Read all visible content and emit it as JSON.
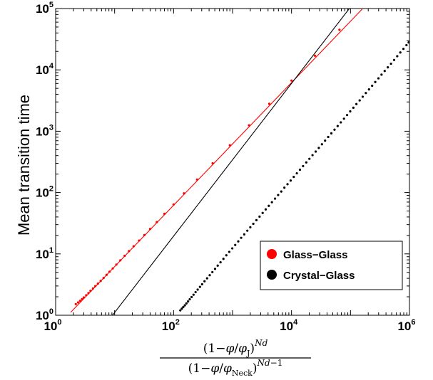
{
  "chart_data": {
    "type": "scatter",
    "x_scale": "log",
    "y_scale": "log",
    "xlim": [
      1,
      1000000
    ],
    "ylim": [
      1,
      100000
    ],
    "x_ticks": [
      {
        "base": "10",
        "exp": "0"
      },
      {
        "base": "10",
        "exp": "2"
      },
      {
        "base": "10",
        "exp": "4"
      },
      {
        "base": "10",
        "exp": "6"
      }
    ],
    "y_ticks": [
      {
        "base": "10",
        "exp": "0"
      },
      {
        "base": "10",
        "exp": "1"
      },
      {
        "base": "10",
        "exp": "2"
      },
      {
        "base": "10",
        "exp": "3"
      },
      {
        "base": "10",
        "exp": "4"
      },
      {
        "base": "10",
        "exp": "5"
      }
    ],
    "ylabel": "Mean transition time",
    "xlabel": "(1−φ/φJ)^Nd / (1−φ/φNeck)^(Nd−1)",
    "legend_position": "bottom-right",
    "series": [
      {
        "name": "Glass−Glass",
        "color": "#ff0000",
        "marker": "dot",
        "points": [
          [
            2.2,
            1.52
          ],
          [
            2.4,
            1.62
          ],
          [
            2.6,
            1.72
          ],
          [
            2.8,
            1.83
          ],
          [
            3.0,
            1.95
          ],
          [
            3.3,
            2.12
          ],
          [
            3.6,
            2.3
          ],
          [
            3.9,
            2.5
          ],
          [
            4.3,
            2.73
          ],
          [
            4.7,
            2.98
          ],
          [
            5.2,
            3.27
          ],
          [
            5.8,
            3.63
          ],
          [
            6.5,
            4.05
          ],
          [
            7.3,
            4.55
          ],
          [
            8.2,
            5.12
          ],
          [
            9.3,
            5.8
          ],
          [
            10.7,
            6.7
          ],
          [
            12.5,
            7.85
          ],
          [
            14.8,
            9.3
          ],
          [
            17.5,
            11.1
          ],
          [
            21,
            13.3
          ],
          [
            26,
            16.5
          ],
          [
            32,
            20.3
          ],
          [
            40,
            25.5
          ],
          [
            52,
            33
          ],
          [
            70,
            45
          ],
          [
            100,
            64
          ],
          [
            150,
            97
          ],
          [
            250,
            163
          ],
          [
            460,
            300
          ],
          [
            900,
            590
          ],
          [
            1900,
            1250
          ],
          [
            4200,
            2800
          ],
          [
            10000,
            6700
          ],
          [
            25000,
            17000
          ],
          [
            65000,
            45000
          ]
        ],
        "fit": {
          "x0": 1.8,
          "x1": 220000,
          "slope": 1.0,
          "coef": 0.62
        }
      },
      {
        "name": "Crystal−Glass",
        "color": "#000000",
        "marker": "dot",
        "points": [
          [
            130,
            1.2
          ],
          [
            138,
            1.28
          ],
          [
            146,
            1.36
          ],
          [
            155,
            1.45
          ],
          [
            165,
            1.56
          ],
          [
            176,
            1.68
          ],
          [
            188,
            1.82
          ],
          [
            202,
            1.98
          ],
          [
            218,
            2.16
          ],
          [
            236,
            2.38
          ],
          [
            256,
            2.62
          ],
          [
            280,
            2.9
          ],
          [
            305,
            3.2
          ],
          [
            335,
            3.58
          ],
          [
            370,
            4.0
          ],
          [
            410,
            4.5
          ],
          [
            455,
            5.05
          ],
          [
            505,
            5.7
          ],
          [
            560,
            6.45
          ],
          [
            625,
            7.3
          ],
          [
            700,
            8.3
          ],
          [
            785,
            9.5
          ],
          [
            880,
            10.8
          ],
          [
            990,
            12.3
          ],
          [
            1110,
            14.0
          ],
          [
            1250,
            16.0
          ],
          [
            1400,
            18.3
          ],
          [
            1580,
            20.8
          ],
          [
            1780,
            23.9
          ],
          [
            2000,
            27.2
          ],
          [
            2250,
            31.0
          ],
          [
            2540,
            35.5
          ],
          [
            2870,
            40.6
          ],
          [
            3240,
            46.5
          ],
          [
            3650,
            53.2
          ],
          [
            4120,
            60.8
          ],
          [
            4650,
            69.6
          ],
          [
            5250,
            79.7
          ],
          [
            5930,
            91.2
          ],
          [
            6700,
            104
          ],
          [
            7570,
            120
          ],
          [
            8550,
            137
          ],
          [
            9660,
            157
          ],
          [
            10900,
            180
          ],
          [
            12300,
            206
          ],
          [
            13900,
            236
          ],
          [
            15700,
            270
          ],
          [
            17800,
            310
          ],
          [
            20100,
            355
          ],
          [
            22700,
            407
          ],
          [
            25700,
            466
          ],
          [
            29000,
            534
          ],
          [
            32800,
            612
          ],
          [
            37100,
            702
          ],
          [
            41900,
            805
          ],
          [
            47400,
            923
          ],
          [
            53600,
            1060
          ],
          [
            60600,
            1215
          ],
          [
            68500,
            1395
          ],
          [
            77500,
            1600
          ],
          [
            87600,
            1835
          ],
          [
            99000,
            2105
          ],
          [
            112000,
            2415
          ],
          [
            126000,
            2770
          ],
          [
            143000,
            3180
          ],
          [
            161000,
            3650
          ],
          [
            182000,
            4190
          ],
          [
            206000,
            4810
          ],
          [
            233000,
            5520
          ],
          [
            263000,
            6340
          ],
          [
            298000,
            7280
          ],
          [
            336000,
            8360
          ],
          [
            380000,
            9600
          ],
          [
            430000,
            11000
          ],
          [
            486000,
            12600
          ],
          [
            549000,
            14500
          ],
          [
            620000,
            16700
          ],
          [
            700000,
            19200
          ],
          [
            790000,
            22000
          ],
          [
            890000,
            25300
          ],
          [
            970000,
            28000
          ]
        ],
        "fit": {
          "x0": 9.2,
          "x1": 1000000,
          "slope": 1.245,
          "coef": 0.063
        }
      }
    ]
  }
}
